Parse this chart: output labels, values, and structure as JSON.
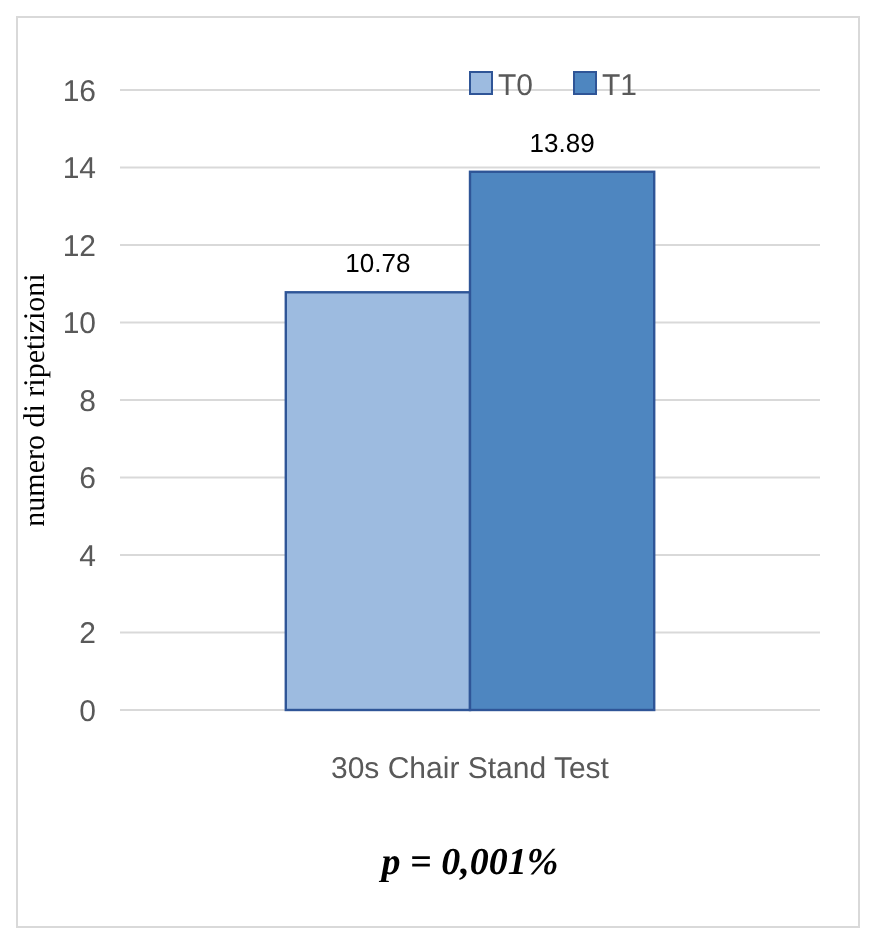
{
  "chart_data": {
    "type": "bar",
    "ylabel": "numero di ripetizioni",
    "categories": [
      "30s Chair Stand Test"
    ],
    "series": [
      {
        "name": "T0",
        "color": "#9dbbe0",
        "values": [
          10.78
        ]
      },
      {
        "name": "T1",
        "color": "#4e86c0",
        "values": [
          13.89
        ]
      }
    ],
    "ylim": [
      0,
      16
    ],
    "yticks": [
      0,
      2,
      4,
      6,
      8,
      10,
      12,
      14,
      16
    ],
    "grid": "y",
    "legend": "top",
    "data_labels": true,
    "annotations": [
      "p = 0,001%"
    ]
  }
}
